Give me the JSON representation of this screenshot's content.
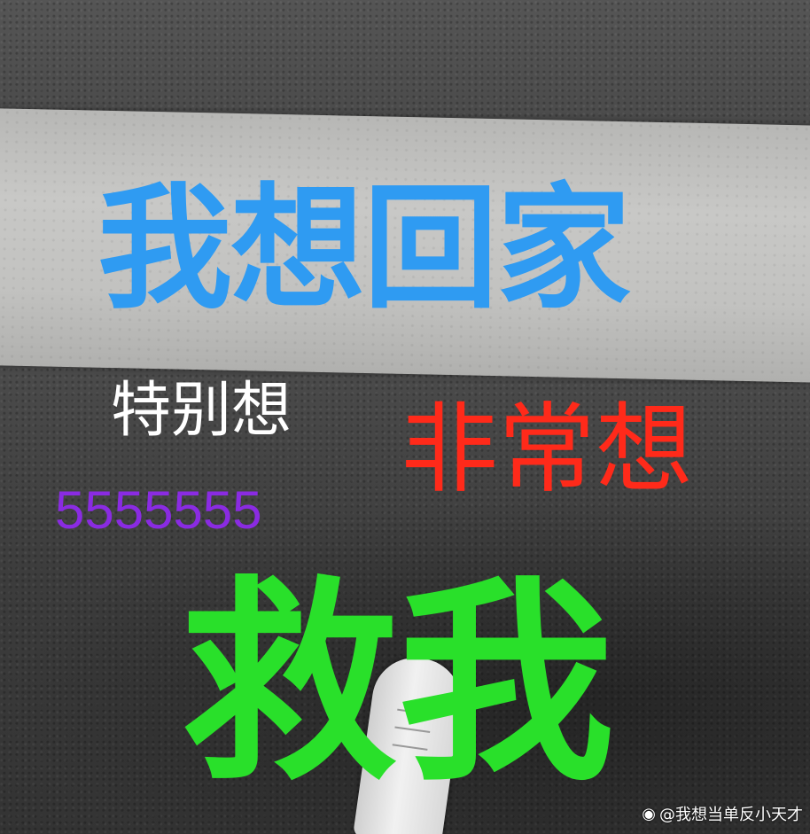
{
  "text": {
    "line1": "我想回家",
    "line2": "特别想",
    "line3": "非常想",
    "line4": "5555555",
    "line5": "救我"
  },
  "colors": {
    "line1": "#2f9bf2",
    "line2": "#ffffff",
    "line3": "#ff2a1a",
    "line4": "#8a2be2",
    "line5": "#29e02a"
  },
  "watermark": {
    "icon": "weibo-icon",
    "text": "@我想当单反小天才"
  }
}
